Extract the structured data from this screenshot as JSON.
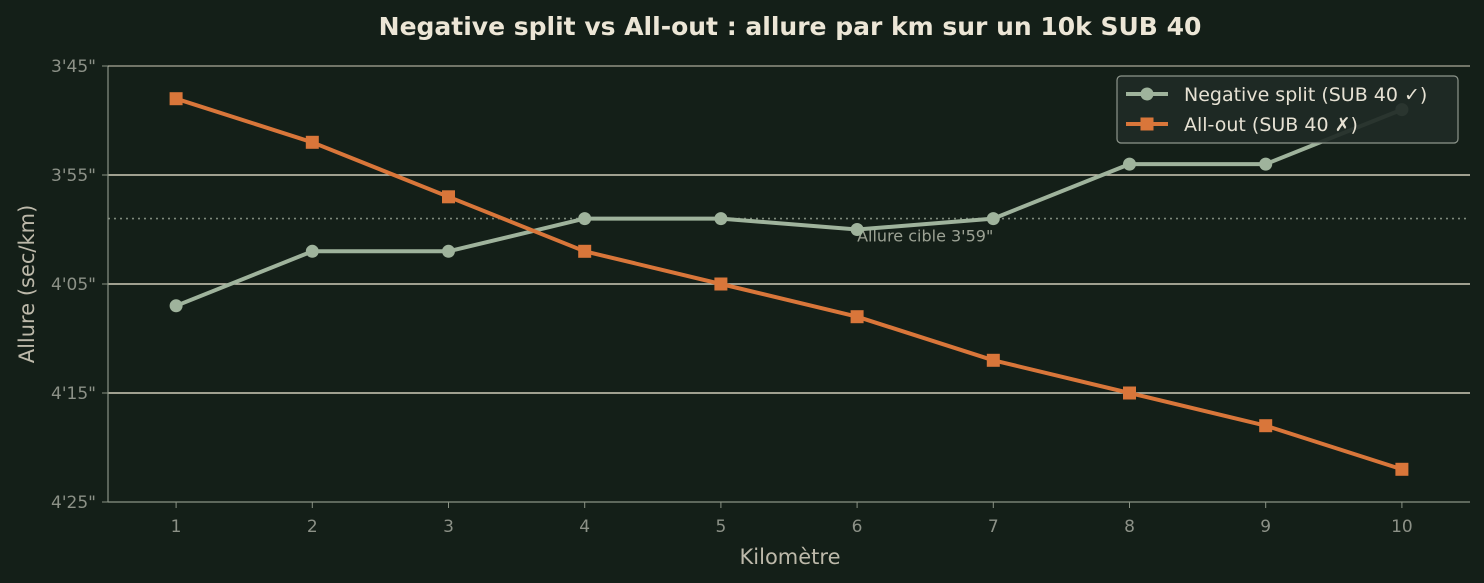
{
  "chart_data": {
    "type": "line",
    "title": "Negative split vs All-out : allure par km sur un 10k SUB 40",
    "xlabel": "Kilomètre",
    "ylabel": "Allure (sec/km)",
    "x": [
      1,
      2,
      3,
      4,
      5,
      6,
      7,
      8,
      9,
      10
    ],
    "y_unit": "seconds per km",
    "ylim": [
      225,
      265
    ],
    "y_inverted": true,
    "xlim": [
      0.5,
      10.5
    ],
    "x_ticks": [
      "1",
      "2",
      "3",
      "4",
      "5",
      "6",
      "7",
      "8",
      "9",
      "10"
    ],
    "y_ticks": [
      {
        "value": 225,
        "label": "3'45\""
      },
      {
        "value": 235,
        "label": "3'55\""
      },
      {
        "value": 245,
        "label": "4'05\""
      },
      {
        "value": 255,
        "label": "4'15\""
      },
      {
        "value": 265,
        "label": "4'25\""
      }
    ],
    "grid": "horizontal",
    "series": [
      {
        "name": "Negative split (SUB 40 ✓)",
        "values": [
          247,
          242,
          242,
          239,
          239,
          240,
          239,
          234,
          234,
          229
        ],
        "color": "#9fb39c",
        "marker": "circle"
      },
      {
        "name": "All-out (SUB 40 ✗)",
        "values": [
          228,
          232,
          237,
          242,
          245,
          248,
          252,
          255,
          258,
          262
        ],
        "color": "#d9763a",
        "marker": "square"
      }
    ],
    "reference_line": {
      "value": 239,
      "label": "Allure cible 3'59\"",
      "style": "dotted"
    },
    "legend_position": "top-right"
  },
  "colors": {
    "background": "#141f18",
    "grid": "#cfcbb8",
    "axis": "#8a9385",
    "legend_bg": "#1f2a26"
  }
}
